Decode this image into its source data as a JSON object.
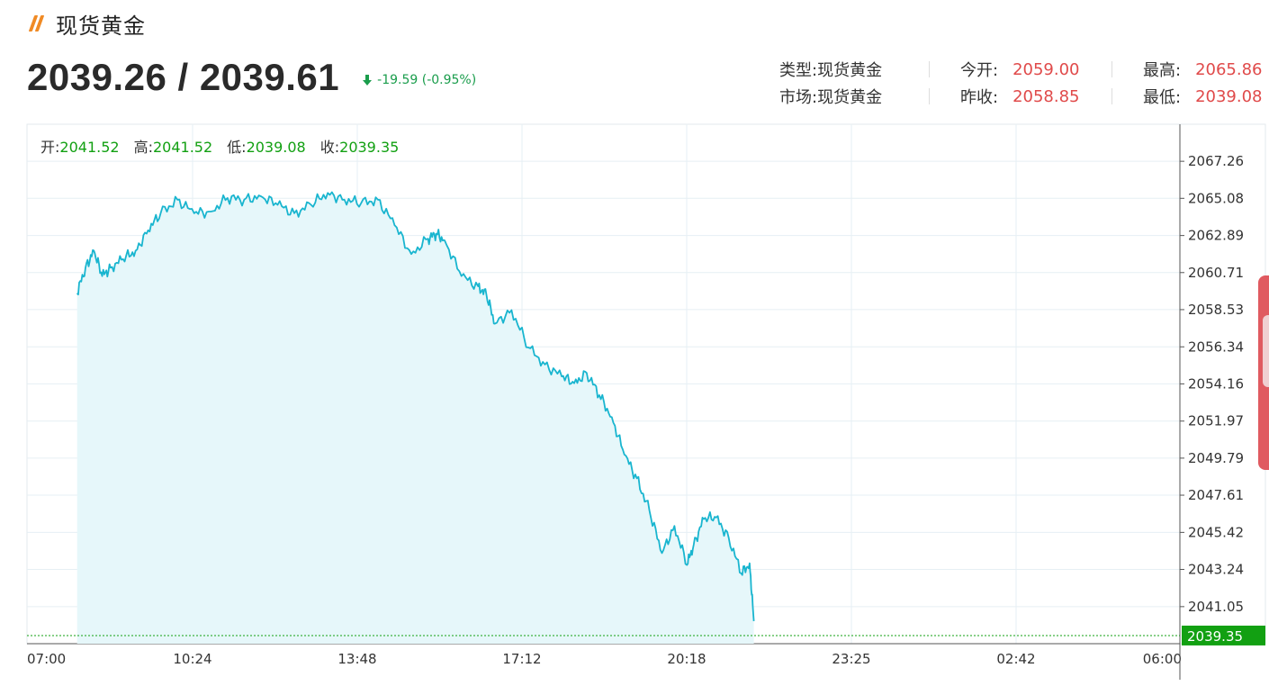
{
  "header": {
    "title": "现货黄金",
    "icon": "slash-icon",
    "icon_color": "#f08a24"
  },
  "quote": {
    "price": "2039.26 / 2039.61",
    "change": "-19.59 (-0.95%)",
    "change_color": "#1a9d4c"
  },
  "info": {
    "type_label": "类型:",
    "type_value": "现货黄金",
    "market_label": "市场:",
    "market_value": "现货黄金",
    "open_label": "今开:",
    "open_value": "2059.00",
    "prev_close_label": "昨收:",
    "prev_close_value": "2058.85",
    "high_label": "最高:",
    "high_value": "2065.86",
    "low_label": "最低:",
    "low_value": "2039.08"
  },
  "ohlc": {
    "open_label": "开:",
    "open_value": "2041.52",
    "high_label": "高:",
    "high_value": "2041.52",
    "low_label": "低:",
    "low_value": "2039.08",
    "close_label": "收:",
    "close_value": "2039.35"
  },
  "chart_data": {
    "type": "area",
    "title": "",
    "xlabel": "",
    "ylabel": "",
    "x_ticks": [
      "07:00",
      "10:24",
      "13:48",
      "17:12",
      "20:18",
      "23:25",
      "02:42",
      "06:00"
    ],
    "y_ticks": [
      "2067.26",
      "2065.08",
      "2062.89",
      "2060.71",
      "2058.53",
      "2056.34",
      "2054.16",
      "2051.97",
      "2049.79",
      "2047.61",
      "2045.42",
      "2043.24",
      "2041.05"
    ],
    "ylim": [
      2038.87,
      2069.44
    ],
    "last_price_label": "2039.35",
    "line_color": "#19b5cf",
    "fill_color": "#e6f7fa",
    "last_price_color": "#12a012",
    "grid": true,
    "series": [
      {
        "x": [
          "08:00",
          "08:10",
          "08:20",
          "08:30",
          "08:40",
          "08:55",
          "09:10",
          "09:25",
          "09:40",
          "10:00",
          "10:20",
          "10:40",
          "11:00",
          "11:20",
          "11:40",
          "12:00",
          "12:20",
          "12:40",
          "13:00",
          "13:20",
          "13:40",
          "14:00",
          "14:20",
          "14:40",
          "15:00",
          "15:10",
          "15:20",
          "15:40",
          "16:00",
          "16:10",
          "16:20",
          "16:40",
          "17:00",
          "17:20",
          "17:40",
          "17:55",
          "18:10",
          "18:25",
          "18:40",
          "18:55",
          "19:10",
          "19:25",
          "19:40",
          "19:55",
          "20:10",
          "20:18",
          "20:30",
          "20:45",
          "21:00",
          "21:15",
          "21:25",
          "21:30"
        ],
        "values": [
          2059.5,
          2061.0,
          2062.0,
          2060.5,
          2061.0,
          2061.5,
          2062.0,
          2063.2,
          2064.2,
          2065.0,
          2064.2,
          2064.3,
          2065.1,
          2065.0,
          2065.2,
          2064.7,
          2064.2,
          2064.7,
          2065.4,
          2065.0,
          2064.8,
          2065.0,
          2063.5,
          2061.8,
          2062.7,
          2063.0,
          2062.6,
          2060.5,
          2059.9,
          2059.4,
          2057.7,
          2058.5,
          2056.3,
          2055.3,
          2054.6,
          2054.2,
          2054.8,
          2053.5,
          2052.2,
          2050.0,
          2048.6,
          2046.7,
          2044.2,
          2045.8,
          2043.5,
          2044.7,
          2046.2,
          2046.3,
          2045.1,
          2043.0,
          2043.6,
          2040.2
        ]
      }
    ]
  }
}
